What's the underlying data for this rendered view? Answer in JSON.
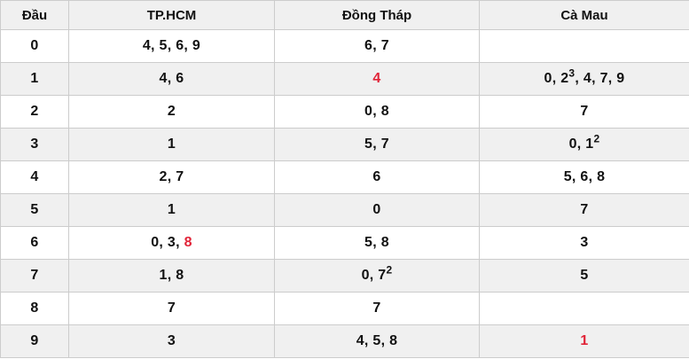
{
  "colors": {
    "accent_red": "#e12337",
    "header_bg": "#f0f0f0",
    "stripe_bg": "#f0f0f0",
    "border": "#cccccc",
    "text": "#111111",
    "page_bg": "#ffffff"
  },
  "table": {
    "columns": [
      {
        "key": "dau",
        "label": "Đầu"
      },
      {
        "key": "tphcm",
        "label": "TP.HCM"
      },
      {
        "key": "dongthap",
        "label": "Đồng Tháp"
      },
      {
        "key": "camau",
        "label": "Cà Mau"
      }
    ],
    "rows": [
      {
        "head": "0",
        "cells": [
          [
            {
              "t": "4, 5, 6, 9"
            }
          ],
          [
            {
              "t": "6, 7"
            }
          ],
          []
        ]
      },
      {
        "head": "1",
        "cells": [
          [
            {
              "t": "4, 6"
            }
          ],
          [
            {
              "t": "4",
              "red": true
            }
          ],
          [
            {
              "t": "0, 2"
            },
            {
              "t": "3",
              "sup": true
            },
            {
              "t": ", 4, 7, 9"
            }
          ]
        ]
      },
      {
        "head": "2",
        "cells": [
          [
            {
              "t": "2"
            }
          ],
          [
            {
              "t": "0, 8"
            }
          ],
          [
            {
              "t": "7"
            }
          ]
        ]
      },
      {
        "head": "3",
        "cells": [
          [
            {
              "t": "1"
            }
          ],
          [
            {
              "t": "5, 7"
            }
          ],
          [
            {
              "t": "0, 1"
            },
            {
              "t": "2",
              "sup": true
            }
          ]
        ]
      },
      {
        "head": "4",
        "cells": [
          [
            {
              "t": "2, 7"
            }
          ],
          [
            {
              "t": "6"
            }
          ],
          [
            {
              "t": "5, 6, 8"
            }
          ]
        ]
      },
      {
        "head": "5",
        "cells": [
          [
            {
              "t": "1"
            }
          ],
          [
            {
              "t": "0"
            }
          ],
          [
            {
              "t": "7"
            }
          ]
        ]
      },
      {
        "head": "6",
        "cells": [
          [
            {
              "t": "0, 3, "
            },
            {
              "t": "8",
              "red": true
            }
          ],
          [
            {
              "t": "5, 8"
            }
          ],
          [
            {
              "t": "3"
            }
          ]
        ]
      },
      {
        "head": "7",
        "cells": [
          [
            {
              "t": "1, 8"
            }
          ],
          [
            {
              "t": "0, 7"
            },
            {
              "t": "2",
              "sup": true
            }
          ],
          [
            {
              "t": "5"
            }
          ]
        ]
      },
      {
        "head": "8",
        "cells": [
          [
            {
              "t": "7"
            }
          ],
          [
            {
              "t": "7"
            }
          ],
          []
        ]
      },
      {
        "head": "9",
        "cells": [
          [
            {
              "t": "3"
            }
          ],
          [
            {
              "t": "4, 5, 8"
            }
          ],
          [
            {
              "t": "1",
              "red": true
            }
          ]
        ]
      }
    ]
  }
}
